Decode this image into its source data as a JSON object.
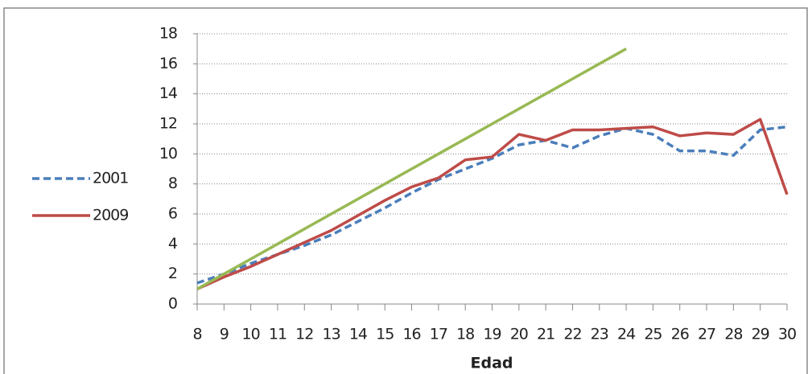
{
  "chart_data": {
    "type": "line",
    "xlabel": "Edad",
    "categories": [
      8,
      9,
      10,
      11,
      12,
      13,
      14,
      15,
      16,
      17,
      18,
      19,
      20,
      21,
      22,
      23,
      24,
      25,
      26,
      27,
      28,
      29,
      30
    ],
    "series": [
      {
        "name": "2001",
        "color": "#4a7ebb",
        "dash": true,
        "values": [
          1.4,
          2.0,
          2.7,
          3.3,
          3.9,
          4.6,
          5.5,
          6.4,
          7.4,
          8.3,
          9.0,
          9.7,
          10.6,
          10.9,
          10.4,
          11.2,
          11.7,
          11.3,
          10.2,
          10.2,
          9.9,
          11.6,
          11.8
        ]
      },
      {
        "name": "2009",
        "color": "#be4b48",
        "dash": false,
        "values": [
          1.0,
          1.8,
          2.5,
          3.3,
          4.1,
          4.9,
          5.9,
          6.9,
          7.8,
          8.4,
          9.6,
          9.8,
          11.3,
          10.9,
          11.6,
          11.6,
          11.7,
          11.8,
          11.2,
          11.4,
          11.3,
          12.3,
          7.3
        ]
      },
      {
        "color": "#98b954",
        "dash": false,
        "values": [
          1,
          2,
          3,
          4,
          5,
          6,
          7,
          8,
          9,
          10,
          11,
          12,
          13,
          14,
          15,
          16,
          17,
          null,
          null,
          null,
          null,
          null,
          null
        ]
      }
    ],
    "ylim": [
      0,
      18
    ],
    "yticks": [
      0,
      2,
      4,
      6,
      8,
      10,
      12,
      14,
      16,
      18
    ],
    "grid": true,
    "legend": "left"
  }
}
